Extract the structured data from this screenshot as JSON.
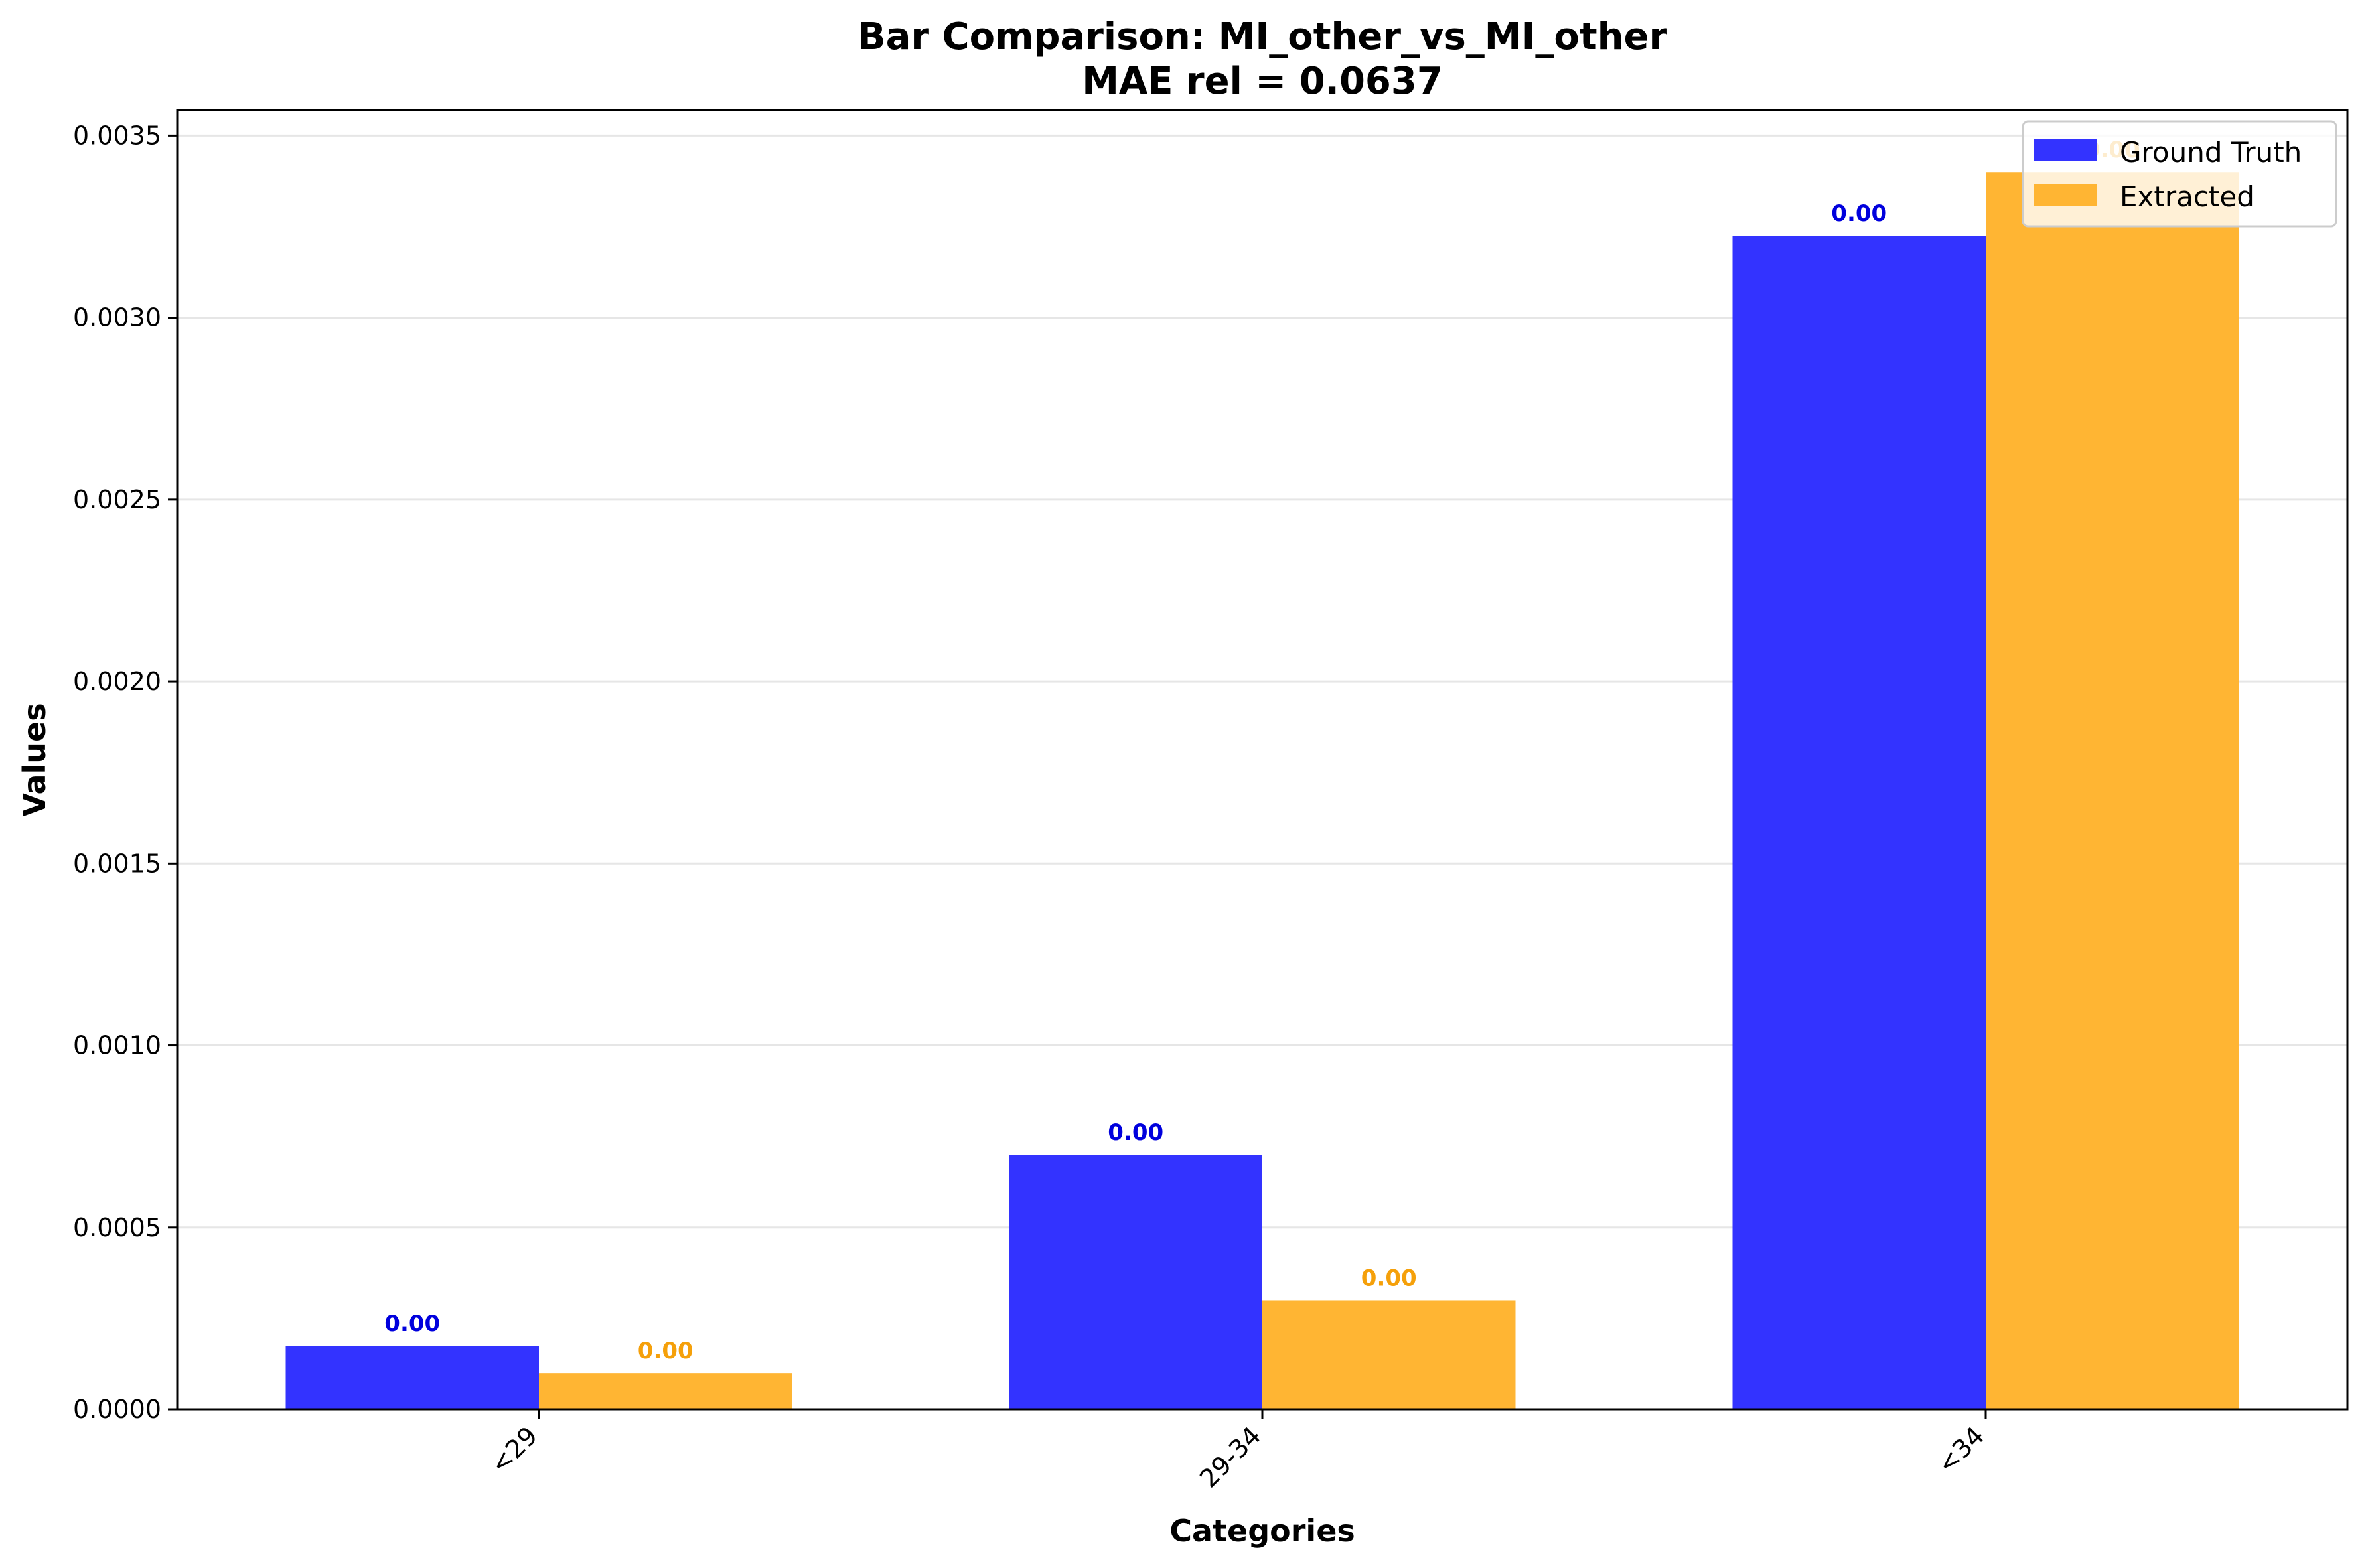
{
  "chart_data": {
    "type": "bar",
    "title": "Bar Comparison: MI_other_vs_MI_other",
    "subtitle": "MAE rel = 0.0637",
    "xlabel": "Categories",
    "ylabel": "Values",
    "categories": [
      "<29",
      "29-34",
      "<34"
    ],
    "ylim": [
      0,
      0.00357
    ],
    "yticks": [
      "0.0000",
      "0.0005",
      "0.0010",
      "0.0015",
      "0.0020",
      "0.0025",
      "0.0030",
      "0.0035"
    ],
    "grid": "horizontal",
    "legend_position": "top-right",
    "series": [
      {
        "name": "Ground Truth",
        "color": "#3333ff",
        "label_color": "#0000dd",
        "values": [
          0.000175,
          0.0007,
          0.003225
        ],
        "labels": [
          "0.00",
          "0.00",
          "0.00"
        ]
      },
      {
        "name": "Extracted",
        "color": "#ffb533",
        "label_color": "#f5a00a",
        "values": [
          0.0001,
          0.0003,
          0.0034
        ],
        "labels": [
          "0.00",
          "0.00",
          "0.00"
        ]
      }
    ]
  }
}
